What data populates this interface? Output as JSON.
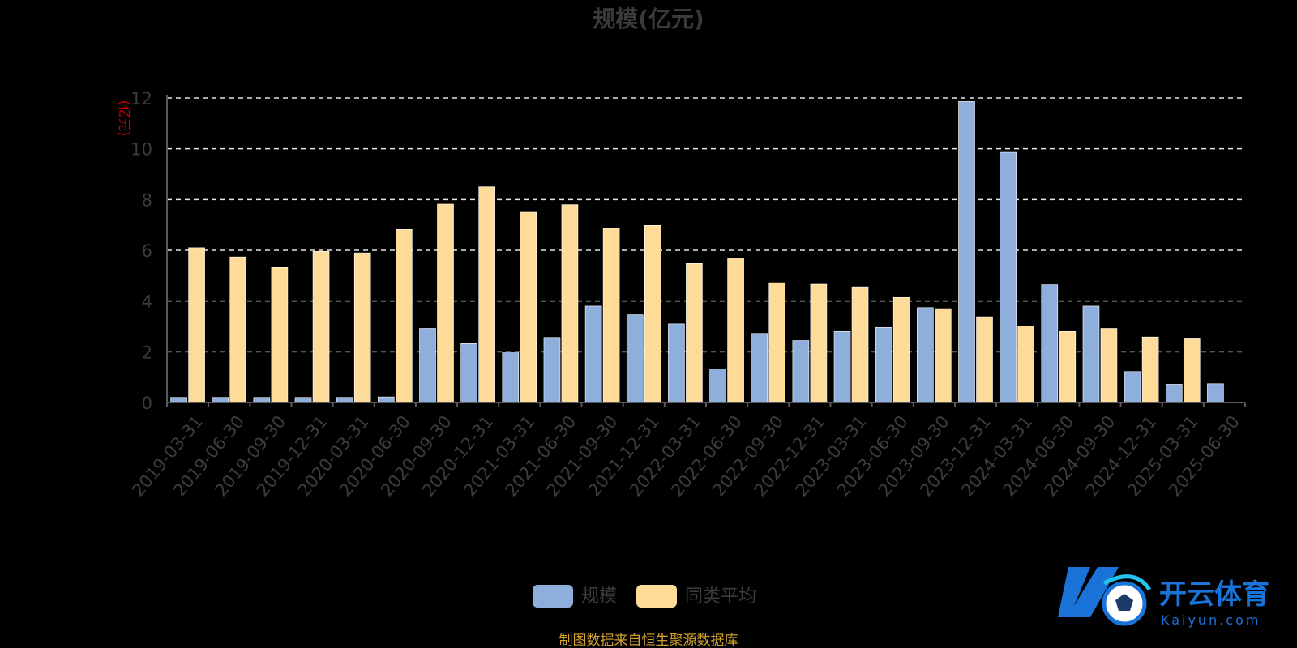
{
  "colors": {
    "background": "#000000",
    "series_scale": "#8eaedc",
    "series_average": "#ffdb99",
    "grid": "#e8e8e8",
    "axis": "#5a5a5a",
    "unit_label": "#cc0000",
    "source_note": "#d4a12a",
    "logo": "#1a73d9"
  },
  "chart_data": {
    "type": "bar",
    "title": "规模(亿元)",
    "y_unit_label": "(亿元)",
    "ylim": [
      0,
      12
    ],
    "y_ticks": [
      0,
      2,
      4,
      6,
      8,
      10,
      12
    ],
    "grid": true,
    "grid_style": "dashed",
    "legend_position": "bottom-center",
    "categories": [
      "2019-03-31",
      "2019-06-30",
      "2019-09-30",
      "2019-12-31",
      "2020-03-31",
      "2020-06-30",
      "2020-09-30",
      "2020-12-31",
      "2021-03-31",
      "2021-06-30",
      "2021-09-30",
      "2021-12-31",
      "2022-03-31",
      "2022-06-30",
      "2022-09-30",
      "2022-12-31",
      "2023-03-31",
      "2023-06-30",
      "2023-09-30",
      "2023-12-31",
      "2024-03-31",
      "2024-06-30",
      "2024-09-30",
      "2024-12-31",
      "2025-03-31",
      "2025-06-30"
    ],
    "series": [
      {
        "name": "规模",
        "color": "#8eaedc",
        "values": [
          0.2,
          0.2,
          0.2,
          0.2,
          0.2,
          0.22,
          2.92,
          2.32,
          2.0,
          2.56,
          3.8,
          3.46,
          3.1,
          1.32,
          2.72,
          2.44,
          2.8,
          2.96,
          3.74,
          11.86,
          9.86,
          4.64,
          3.8,
          1.22,
          0.72,
          0.74
        ]
      },
      {
        "name": "同类平均",
        "color": "#ffdb99",
        "values": [
          6.1,
          5.74,
          5.32,
          5.96,
          5.9,
          6.82,
          7.82,
          8.5,
          7.5,
          7.8,
          6.86,
          6.98,
          5.48,
          5.7,
          4.72,
          4.66,
          4.56,
          4.14,
          3.7,
          3.38,
          3.02,
          2.8,
          2.92,
          2.58,
          2.54,
          null
        ]
      }
    ]
  },
  "source_note": "制图数据来自恒生聚源数据库",
  "watermark": {
    "cn": "开云体育",
    "en": "Kaiyun.com",
    "icon": "soccer-ball-k-logo"
  }
}
